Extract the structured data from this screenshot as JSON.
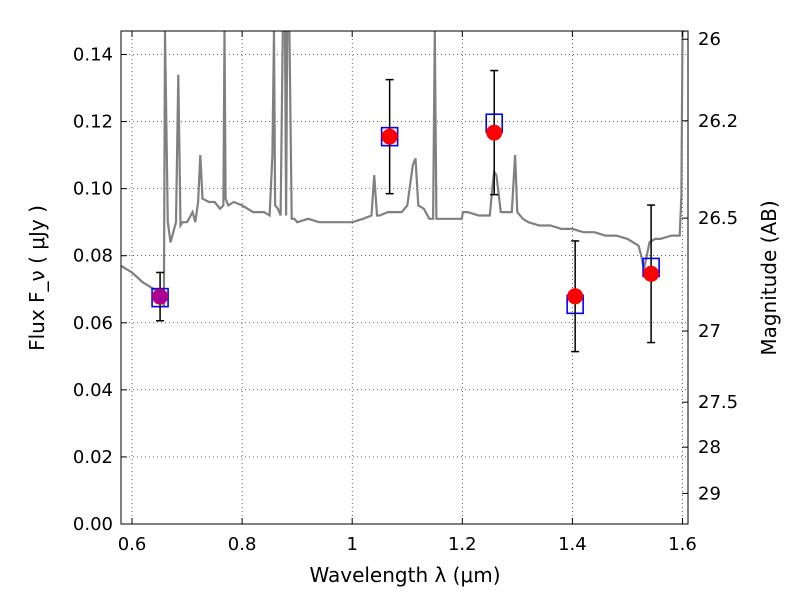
{
  "chart_data": {
    "type": "scatter",
    "xlabel": "Wavelength  λ (μm)",
    "ylabel": "Flux  F_ν  ( μJy )",
    "y2label": "Magnitude (AB)",
    "xlim": [
      0.58,
      1.61
    ],
    "ylim": [
      0.0,
      0.147
    ],
    "grid": true,
    "x_ticks": [
      {
        "value": 0.6,
        "label": "0.6"
      },
      {
        "value": 0.8,
        "label": "0.8"
      },
      {
        "value": 1.0,
        "label": "1"
      },
      {
        "value": 1.2,
        "label": "1.2"
      },
      {
        "value": 1.4,
        "label": "1.4"
      },
      {
        "value": 1.6,
        "label": "1.6"
      }
    ],
    "y_ticks": [
      {
        "value": 0.0,
        "label": "0.00"
      },
      {
        "value": 0.02,
        "label": "0.02"
      },
      {
        "value": 0.04,
        "label": "0.04"
      },
      {
        "value": 0.06,
        "label": "0.06"
      },
      {
        "value": 0.08,
        "label": "0.08"
      },
      {
        "value": 0.1,
        "label": "0.10"
      },
      {
        "value": 0.12,
        "label": "0.12"
      },
      {
        "value": 0.14,
        "label": "0.14"
      }
    ],
    "mag_ticks": [
      {
        "value": 26.0,
        "label": "26"
      },
      {
        "value": 26.2,
        "label": "26.2"
      },
      {
        "value": 26.5,
        "label": "26.5"
      },
      {
        "value": 27.0,
        "label": "27"
      },
      {
        "value": 27.5,
        "label": "27.5"
      },
      {
        "value": 28.0,
        "label": "28"
      },
      {
        "value": 29.0,
        "label": "29"
      }
    ],
    "series": [
      {
        "kind": "model_spectrum",
        "color": "#808080",
        "x": [
          0.58,
          0.6,
          0.62,
          0.64,
          0.65,
          0.655,
          0.658,
          0.66,
          0.665,
          0.67,
          0.68,
          0.684,
          0.688,
          0.692,
          0.7,
          0.71,
          0.715,
          0.72,
          0.724,
          0.728,
          0.74,
          0.75,
          0.76,
          0.766,
          0.768,
          0.77,
          0.775,
          0.785,
          0.8,
          0.82,
          0.84,
          0.85,
          0.855,
          0.858,
          0.86,
          0.865,
          0.87,
          0.874,
          0.878,
          0.88,
          0.882,
          0.886,
          0.89,
          0.895,
          0.9,
          0.92,
          0.94,
          0.96,
          0.98,
          1.0,
          1.02,
          1.035,
          1.04,
          1.045,
          1.05,
          1.065,
          1.07,
          1.09,
          1.1,
          1.11,
          1.115,
          1.12,
          1.13,
          1.14,
          1.147,
          1.15,
          1.153,
          1.17,
          1.199,
          1.201,
          1.21,
          1.23,
          1.25,
          1.255,
          1.258,
          1.262,
          1.27,
          1.29,
          1.296,
          1.3,
          1.31,
          1.32,
          1.34,
          1.36,
          1.38,
          1.4,
          1.42,
          1.44,
          1.46,
          1.48,
          1.5,
          1.52,
          1.525,
          1.53,
          1.54,
          1.55,
          1.56,
          1.58,
          1.595,
          1.598,
          1.6,
          1.605
        ],
        "y": [
          0.077,
          0.075,
          0.072,
          0.07,
          0.069,
          0.068,
          0.065,
          0.147,
          0.09,
          0.084,
          0.09,
          0.134,
          0.089,
          0.09,
          0.09,
          0.093,
          0.09,
          0.096,
          0.11,
          0.097,
          0.096,
          0.096,
          0.094,
          0.095,
          0.147,
          0.097,
          0.095,
          0.096,
          0.095,
          0.093,
          0.093,
          0.092,
          0.11,
          0.147,
          0.095,
          0.094,
          0.092,
          0.147,
          0.147,
          0.092,
          0.147,
          0.147,
          0.091,
          0.091,
          0.09,
          0.091,
          0.09,
          0.09,
          0.09,
          0.09,
          0.091,
          0.092,
          0.104,
          0.092,
          0.092,
          0.093,
          0.093,
          0.093,
          0.095,
          0.107,
          0.109,
          0.095,
          0.094,
          0.091,
          0.091,
          0.147,
          0.091,
          0.091,
          0.091,
          0.093,
          0.093,
          0.092,
          0.092,
          0.101,
          0.105,
          0.104,
          0.093,
          0.093,
          0.11,
          0.093,
          0.091,
          0.09,
          0.089,
          0.089,
          0.088,
          0.088,
          0.087,
          0.087,
          0.086,
          0.086,
          0.085,
          0.083,
          0.08,
          0.076,
          0.084,
          0.085,
          0.085,
          0.086,
          0.086,
          0.098,
          0.147,
          0.147
        ]
      },
      {
        "kind": "model_photometry",
        "marker": "square",
        "color": "#0000ff",
        "x": [
          0.651,
          1.068,
          1.258,
          1.405,
          1.543
        ],
        "y": [
          0.0675,
          0.1155,
          0.1195,
          0.0655,
          0.0765
        ]
      },
      {
        "kind": "observed_photometry",
        "marker": "circle",
        "color": "#ff0000",
        "x": [
          0.651,
          1.068,
          1.258,
          1.405,
          1.543
        ],
        "y": [
          0.0678,
          0.1155,
          0.1167,
          0.0679,
          0.0746
        ],
        "yerr": [
          0.0072,
          0.017,
          0.0185,
          0.0165,
          0.0205
        ]
      }
    ]
  }
}
